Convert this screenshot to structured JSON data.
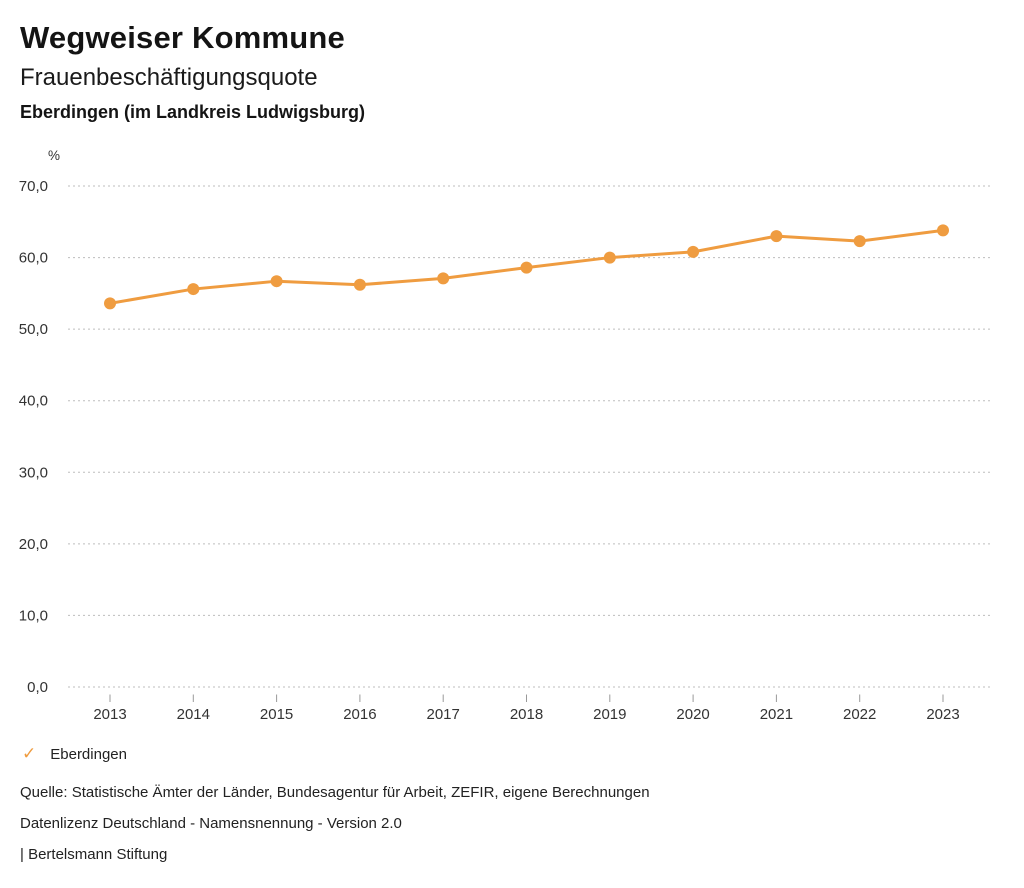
{
  "header": {
    "title": "Wegweiser Kommune",
    "subtitle": "Frauenbeschäftigungsquote",
    "region": "Eberdingen (im Landkreis Ludwigsburg)"
  },
  "chart_data": {
    "type": "line",
    "title": "Frauenbeschäftigungsquote",
    "subtitle": "Eberdingen (im Landkreis Ludwigsburg)",
    "unit_label": "%",
    "categories": [
      "2013",
      "2014",
      "2015",
      "2016",
      "2017",
      "2018",
      "2019",
      "2020",
      "2021",
      "2022",
      "2023"
    ],
    "series": [
      {
        "name": "Eberdingen",
        "color": "#EF9C40",
        "values": [
          53.6,
          55.6,
          56.7,
          56.2,
          57.1,
          58.6,
          60.0,
          60.8,
          63.0,
          62.3,
          63.8
        ]
      }
    ],
    "ylim": [
      0,
      70
    ],
    "yticks": [
      {
        "value": 70,
        "label": "70,0"
      },
      {
        "value": 60,
        "label": "60,0"
      },
      {
        "value": 50,
        "label": "50,0"
      },
      {
        "value": 40,
        "label": "40,0"
      },
      {
        "value": 30,
        "label": "30,0"
      },
      {
        "value": 20,
        "label": "20,0"
      },
      {
        "value": 10,
        "label": "10,0"
      },
      {
        "value": 0,
        "label": "0,0"
      }
    ],
    "grid": "horizontal-dotted",
    "legend_position": "bottom-left"
  },
  "legend": {
    "items": [
      {
        "icon": "✓",
        "label": "Eberdingen",
        "color": "#EF9C40"
      }
    ]
  },
  "footer": {
    "source": "Quelle: Statistische Ämter der Länder, Bundesagentur für Arbeit, ZEFIR, eigene Berechnungen",
    "license": "Datenlizenz Deutschland - Namensnennung - Version 2.0",
    "attribution": "| Bertelsmann Stiftung"
  },
  "colors": {
    "series_orange": "#EF9C40",
    "gridline_gray": "#bdbdbd",
    "tick_gray": "#999999",
    "axis_text": "#333333"
  }
}
